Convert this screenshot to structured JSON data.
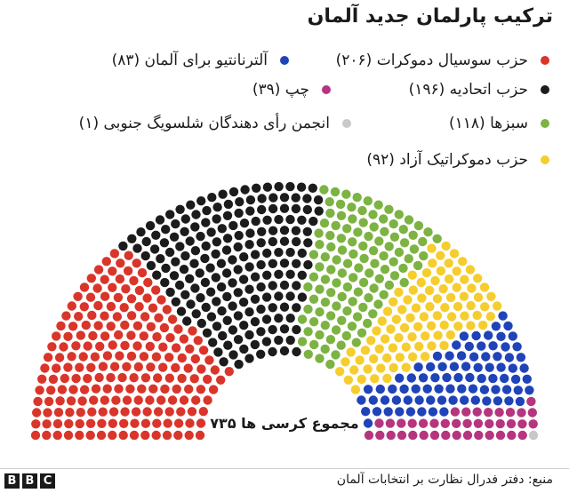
{
  "title": "ترکیب پارلمان جدید آلمان",
  "chart_data": {
    "type": "hemicycle",
    "title": "ترکیب پارلمان جدید آلمان",
    "total_label": "مجموع کرسی ها ۷۳۵",
    "total": 735,
    "series": [
      {
        "name": "حزب سوسیال دموکرات",
        "seats": 206,
        "label": "(۲۰۶)",
        "color": "#d9352a"
      },
      {
        "name": "حزب اتحادیه",
        "seats": 196,
        "label": "(۱۹۶)",
        "color": "#1c1c1c"
      },
      {
        "name": "سبزها",
        "seats": 118,
        "label": "(۱۱۸)",
        "color": "#7cb342"
      },
      {
        "name": "حزب دموکراتیک آزاد",
        "seats": 92,
        "label": "(۹۲)",
        "color": "#f6cd2e"
      },
      {
        "name": "آلترنانتیو برای آلمان",
        "seats": 83,
        "label": "(۸۳)",
        "color": "#1f43b8"
      },
      {
        "name": "چپ",
        "seats": 39,
        "label": "(۳۹)",
        "color": "#b5357e"
      },
      {
        "name": "انجمن رأی دهندگان شلسویگ جنوبی",
        "seats": 1,
        "label": "(۱)",
        "color": "#c8c8c8"
      }
    ]
  },
  "footer": {
    "source": "منبع: دفتر فدرال نظارت بر انتخابات آلمان",
    "logo_letters": [
      "B",
      "B",
      "C"
    ]
  }
}
